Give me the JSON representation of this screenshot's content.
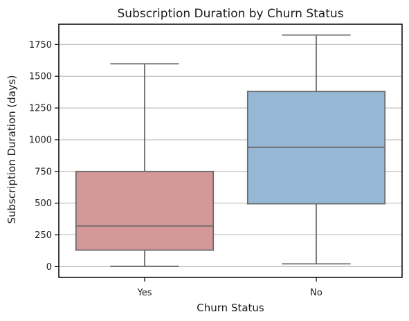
{
  "chart_data": {
    "type": "box",
    "title": "Subscription Duration by Churn Status",
    "xlabel": "Churn Status",
    "ylabel": "Subscription Duration (days)",
    "categories": [
      "Yes",
      "No"
    ],
    "boxes": [
      {
        "category": "Yes",
        "whisker_low": 2,
        "q1": 130,
        "median": 320,
        "q3": 750,
        "whisker_high": 1598,
        "color": "#d49898"
      },
      {
        "category": "No",
        "whisker_low": 22,
        "q1": 495,
        "median": 940,
        "q3": 1380,
        "whisker_high": 1825,
        "color": "#95b8d6"
      }
    ],
    "ylim": [
      -85,
      1910
    ],
    "yticks": [
      0,
      250,
      500,
      750,
      1000,
      1250,
      1500,
      1750
    ],
    "grid": "y",
    "line_color": "#6b6b6b",
    "grid_color": "#b0b0b0"
  }
}
